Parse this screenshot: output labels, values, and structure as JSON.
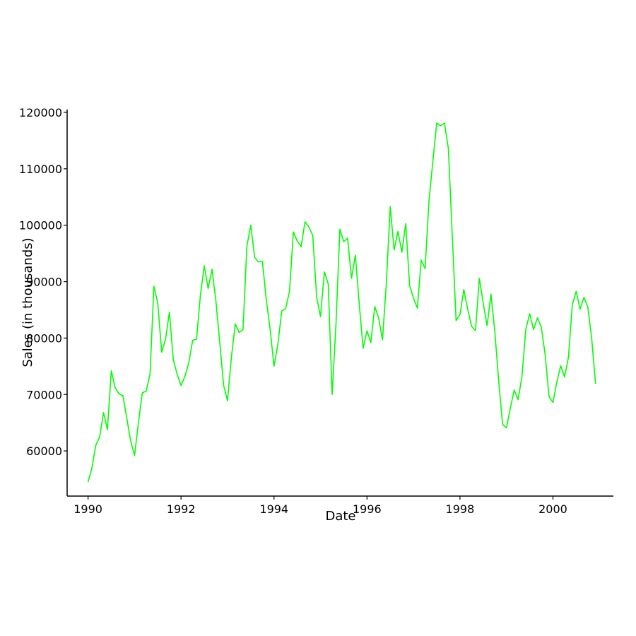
{
  "chart_data": {
    "type": "line",
    "title": "",
    "xlabel": "Date",
    "ylabel": "Sales (in thousands)",
    "xlim": [
      1989.55,
      2001.3
    ],
    "ylim": [
      52000,
      120500
    ],
    "x_ticks": [
      1990,
      1992,
      1994,
      1996,
      1998,
      2000
    ],
    "x_tick_labels": [
      "1990",
      "1992",
      "1994",
      "1996",
      "1998",
      "2000"
    ],
    "y_ticks": [
      60000,
      70000,
      80000,
      90000,
      100000,
      110000,
      120000
    ],
    "y_tick_labels": [
      "60000",
      "70000",
      "80000",
      "90000",
      "100000",
      "110000",
      "120000"
    ],
    "grid": false,
    "legend": "none",
    "line_color": "#00ff00",
    "axis_color": "#000000",
    "series": [
      {
        "x_start": 1990.0,
        "x_step_months": 1,
        "values": [
          54500,
          57000,
          61000,
          62500,
          66800,
          63800,
          74200,
          71200,
          70100,
          69800,
          65800,
          61800,
          59200,
          65000,
          70300,
          70600,
          73600,
          89200,
          86200,
          77500,
          79800,
          84600,
          76200,
          73600,
          71600,
          73200,
          75600,
          79600,
          79800,
          87600,
          92800,
          88800,
          92200,
          86600,
          79200,
          71600,
          68900,
          76600,
          82500,
          81000,
          81500,
          96300,
          100000,
          94300,
          93500,
          93600,
          86800,
          81600,
          75000,
          78900,
          84800,
          85200,
          88300,
          98800,
          97200,
          96200,
          100600,
          99700,
          98200,
          87300,
          83800,
          91700,
          89600,
          70000,
          82500,
          99300,
          97100,
          97700,
          90600,
          94700,
          86000,
          78200,
          81300,
          79200,
          85600,
          83600,
          79700,
          89800,
          103300,
          95600,
          98900,
          95200,
          100300,
          89300,
          87100,
          85300,
          93800,
          92300,
          104300,
          111300,
          118100,
          117600,
          118100,
          113600,
          98400,
          83100,
          84200,
          88600,
          85100,
          82100,
          81300,
          90600,
          86200,
          82200,
          87800,
          81100,
          72400,
          64700,
          64100,
          67600,
          70800,
          69100,
          73200,
          81600,
          84300,
          81500,
          83600,
          81900,
          77000,
          69600,
          68600,
          72200,
          75100,
          73100,
          76600,
          85900,
          88300,
          85100,
          87200,
          85500,
          79900,
          71900
        ]
      }
    ]
  }
}
